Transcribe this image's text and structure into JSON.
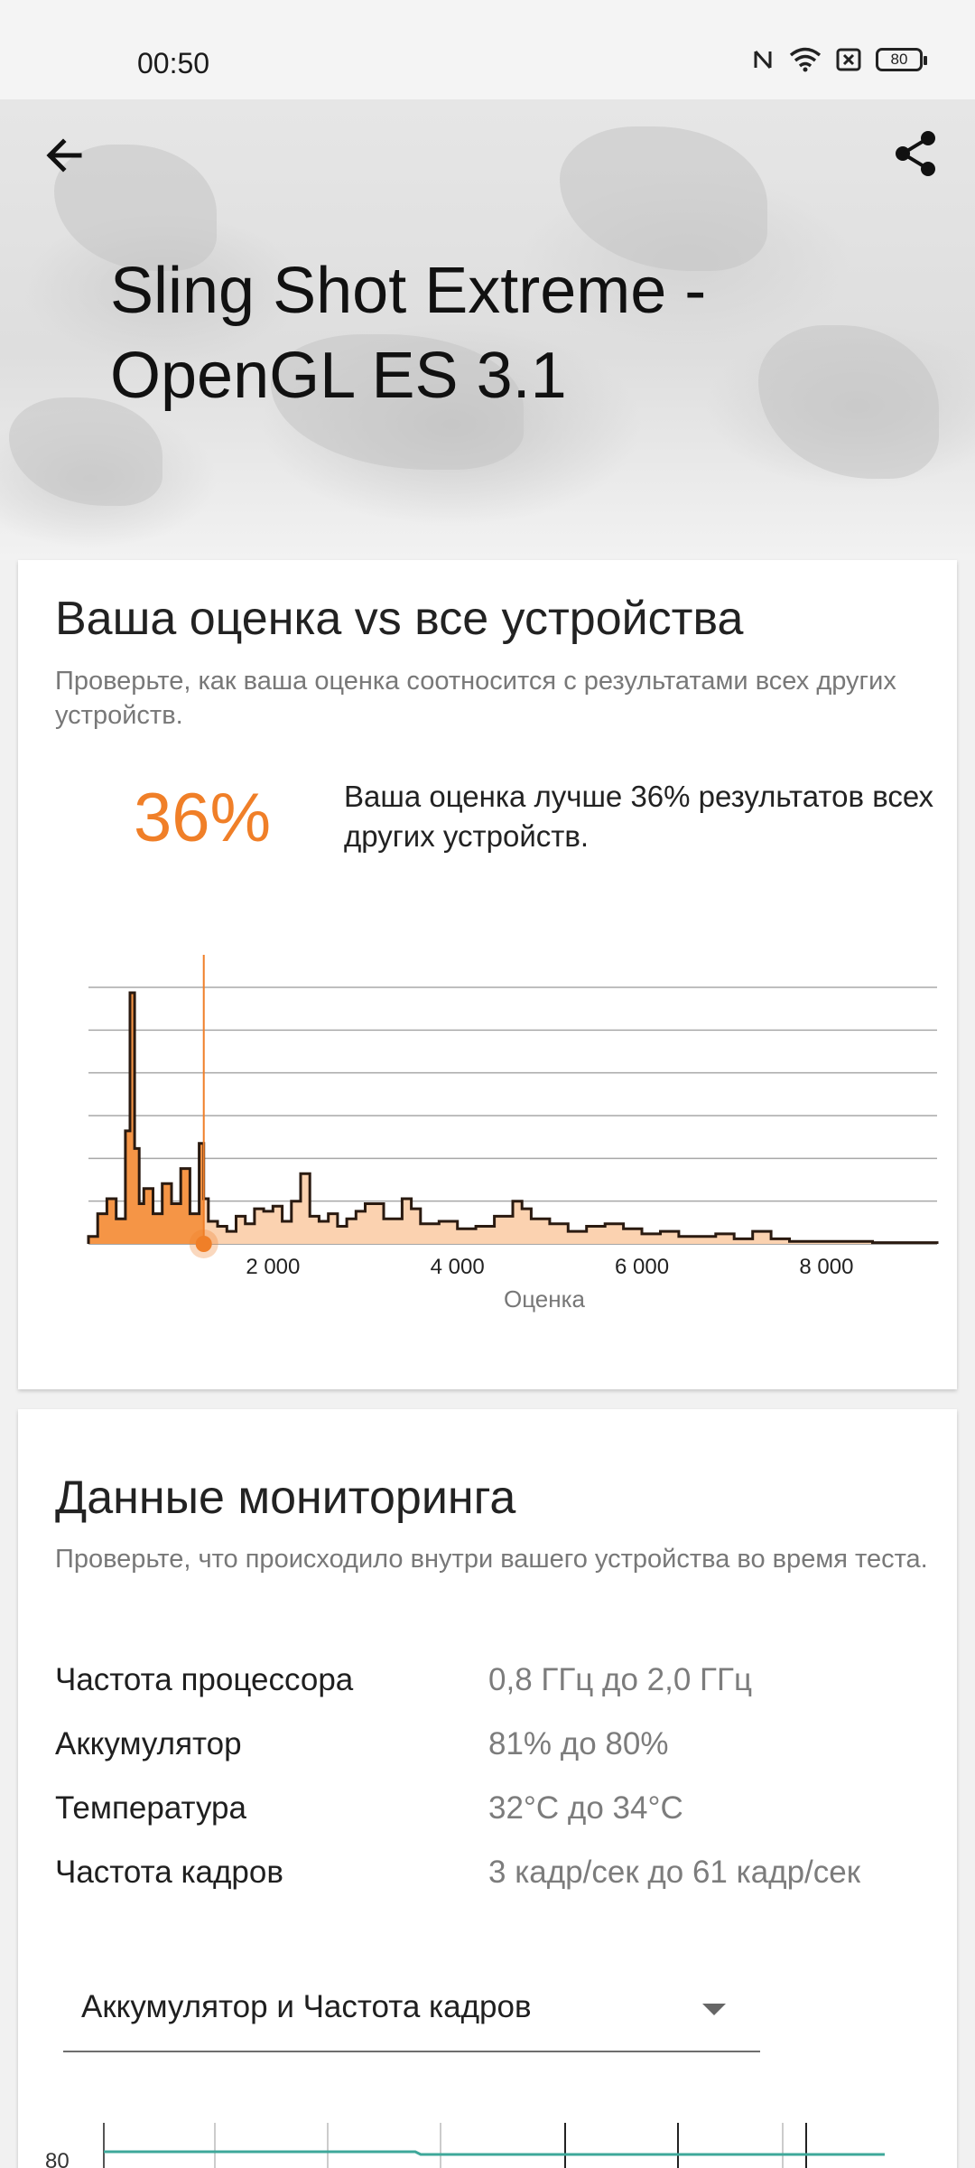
{
  "status_bar": {
    "time": "00:50",
    "icons": [
      "nfc-icon",
      "wifi-icon",
      "sim-off-icon",
      "battery-icon"
    ],
    "battery_level": "80"
  },
  "header": {
    "title": "Sling Shot Extreme - OpenGL ES 3.1",
    "back_icon": "arrow-left-icon",
    "share_icon": "share-icon"
  },
  "comparison": {
    "title": "Ваша оценка vs все устройства",
    "subtitle": "Проверьте, как ваша оценка соотносится с результатами всех других устройств.",
    "percent": "36%",
    "description": "Ваша оценка лучше 36% результатов всех других устройств.",
    "accent_color": "#f07f28"
  },
  "chart_data": {
    "type": "area",
    "xlabel": "Оценка",
    "x_ticks": [
      "2 000",
      "4 000",
      "6 000",
      "8 000"
    ],
    "xlim": [
      0,
      9200
    ],
    "user_score_marker": 1250,
    "x": [
      0,
      100,
      200,
      300,
      400,
      450,
      500,
      550,
      600,
      700,
      800,
      900,
      1000,
      1100,
      1200,
      1250,
      1300,
      1400,
      1500,
      1600,
      1700,
      1800,
      1900,
      2000,
      2100,
      2200,
      2300,
      2400,
      2500,
      2600,
      2700,
      2800,
      2900,
      3000,
      3200,
      3400,
      3500,
      3600,
      3800,
      4000,
      4200,
      4400,
      4600,
      4700,
      4800,
      5000,
      5200,
      5400,
      5600,
      5800,
      6000,
      6200,
      6400,
      6600,
      6800,
      7000,
      7200,
      7400,
      7600,
      8000,
      8500,
      9200
    ],
    "y": [
      3,
      12,
      18,
      10,
      45,
      100,
      38,
      16,
      22,
      12,
      24,
      16,
      30,
      12,
      40,
      18,
      9,
      7,
      5,
      11,
      8,
      14,
      13,
      15,
      9,
      17,
      28,
      11,
      9,
      12,
      7,
      10,
      13,
      16,
      10,
      18,
      14,
      8,
      9,
      6,
      7,
      11,
      17,
      14,
      10,
      8,
      5,
      7,
      8,
      6,
      4,
      5,
      3,
      3,
      4,
      2,
      5,
      2,
      1,
      1,
      0.5,
      0.3
    ],
    "grid": true,
    "colors": {
      "fill_left": "#f59546",
      "fill_right": "#fbd2b0",
      "line": "#2a1a10",
      "marker": "#f07f28"
    }
  },
  "monitoring": {
    "title": "Данные мониторинга",
    "subtitle": "Проверьте, что происходило внутри вашего устройства во время теста.",
    "rows": [
      {
        "label": "Частота процессора",
        "value": "0,8 ГГц до 2,0 ГГц"
      },
      {
        "label": "Аккумулятор",
        "value": "81% до 80%"
      },
      {
        "label": "Температура",
        "value": "32°C до 34°C"
      },
      {
        "label": "Частота кадров",
        "value": "3 кадр/сек до 61 кадр/сек"
      }
    ],
    "dropdown_selected": "Аккумулятор и Частота кадров",
    "mini_chart_y_label": "80"
  }
}
